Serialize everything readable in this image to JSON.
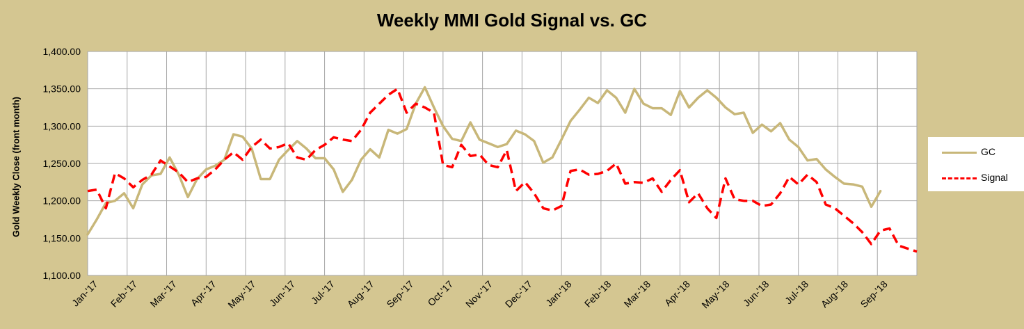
{
  "chart_data": {
    "type": "line",
    "title": "Weekly MMI Gold Signal vs. GC",
    "ylabel": "Gold Weekly Close (front month)",
    "xlabel": "",
    "ylim": [
      1100,
      1400
    ],
    "yticks": [
      "1,100.00",
      "1,150.00",
      "1,200.00",
      "1,250.00",
      "1,300.00",
      "1,350.00",
      "1,400.00"
    ],
    "xticks": [
      "Jan-'17",
      "Feb-'17",
      "Mar-'17",
      "Apr-'17",
      "May-'17",
      "Jun-'17",
      "Jul-'17",
      "Aug-'17",
      "Sep-'17",
      "Oct-'17",
      "Nov-'17",
      "Dec-'17",
      "Jan-'18",
      "Feb-'18",
      "Mar-'18",
      "Apr-'18",
      "May-'18",
      "Jun-'18",
      "Jul-'18",
      "Aug-'18",
      "Sep-'18"
    ],
    "grid": true,
    "legend_position": "right",
    "series": [
      {
        "name": "GC",
        "color": "#C8B779",
        "style": "solid",
        "values": [
          1155,
          1175,
          1197,
          1200,
          1210,
          1190,
          1222,
          1234,
          1236,
          1258,
          1235,
          1205,
          1229,
          1242,
          1247,
          1255,
          1289,
          1286,
          1270,
          1229,
          1229,
          1255,
          1268,
          1280,
          1270,
          1257,
          1257,
          1242,
          1212,
          1228,
          1255,
          1269,
          1258,
          1295,
          1290,
          1296,
          1330,
          1352,
          1325,
          1300,
          1283,
          1280,
          1305,
          1282,
          1277,
          1272,
          1276,
          1294,
          1289,
          1280,
          1251,
          1258,
          1282,
          1307,
          1322,
          1338,
          1331,
          1348,
          1338,
          1318,
          1350,
          1330,
          1324,
          1324,
          1315,
          1347,
          1325,
          1338,
          1348,
          1338,
          1325,
          1316,
          1318,
          1291,
          1302,
          1293,
          1304,
          1282,
          1272,
          1254,
          1256,
          1242,
          1232,
          1223,
          1222,
          1219,
          1192,
          1213
        ]
      },
      {
        "name": "Signal",
        "color": "#FF0000",
        "style": "dashed",
        "values": [
          1213,
          1215,
          1190,
          1237,
          1230,
          1218,
          1228,
          1235,
          1254,
          1246,
          1238,
          1225,
          1230,
          1232,
          1242,
          1255,
          1265,
          1255,
          1272,
          1282,
          1270,
          1272,
          1277,
          1258,
          1255,
          1268,
          1275,
          1285,
          1282,
          1280,
          1295,
          1318,
          1330,
          1342,
          1350,
          1318,
          1330,
          1325,
          1318,
          1248,
          1245,
          1275,
          1260,
          1262,
          1248,
          1245,
          1268,
          1213,
          1225,
          1210,
          1190,
          1187,
          1193,
          1240,
          1242,
          1235,
          1236,
          1240,
          1250,
          1223,
          1225,
          1224,
          1230,
          1212,
          1228,
          1241,
          1198,
          1210,
          1190,
          1177,
          1230,
          1202,
          1200,
          1200,
          1193,
          1195,
          1210,
          1232,
          1222,
          1235,
          1225,
          1195,
          1190,
          1180,
          1170,
          1158,
          1142,
          1160,
          1163,
          1140,
          1136,
          1132
        ]
      }
    ]
  }
}
